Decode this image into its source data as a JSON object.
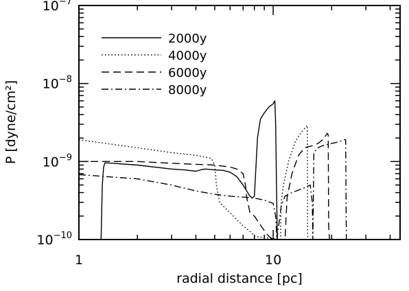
{
  "chart_data": {
    "type": "line",
    "xlabel": "radial distance [pc]",
    "ylabel": "P [dyne/cm²]",
    "x_scale": "log",
    "y_scale": "log",
    "xlim": [
      1,
      45
    ],
    "ylim": [
      1e-10,
      1e-07
    ],
    "x_ticks": [
      {
        "value": 1,
        "label": "1"
      },
      {
        "value": 10,
        "label": "10"
      }
    ],
    "y_ticks": [
      {
        "value": 1e-10,
        "base": "10",
        "exp": "−10"
      },
      {
        "value": 1e-09,
        "base": "10",
        "exp": "−9"
      },
      {
        "value": 1e-08,
        "base": "10",
        "exp": "−8"
      },
      {
        "value": 1e-07,
        "base": "10",
        "exp": "−7"
      }
    ],
    "grid": false,
    "legend_position": "top-left",
    "series": [
      {
        "name": "2000y",
        "dash": "solid",
        "x": [
          1.3,
          1.32,
          1.34,
          1.36,
          1.5,
          2,
          3,
          3.5,
          4,
          4.3,
          4.5,
          5,
          5.5,
          6,
          6.5,
          7,
          7.3,
          7.6,
          7.8,
          8.0,
          8.3,
          8.6,
          9.0,
          9.5,
          10.0,
          10.2,
          10.3,
          10.4,
          10.5
        ],
        "y": [
          1e-10,
          5e-10,
          8.5e-10,
          9.6e-10,
          9.5e-10,
          9e-10,
          8e-10,
          7.8e-10,
          7.5e-10,
          7.9e-10,
          8e-10,
          7.8e-10,
          7.7e-10,
          7.3e-10,
          6.4e-10,
          5e-10,
          4.2e-10,
          3.6e-10,
          3.4e-10,
          3.6e-10,
          2e-09,
          3.5e-09,
          4.2e-09,
          5e-09,
          5.5e-09,
          6e-09,
          3e-09,
          5e-10,
          1e-10
        ]
      },
      {
        "name": "4000y",
        "dash": "dotted",
        "x": [
          1,
          2,
          3,
          4,
          4.8,
          5.0,
          5.1,
          5.3,
          5.6,
          6,
          6.5,
          7,
          7.5,
          7.8,
          8.0,
          10.9,
          11.0,
          11.3,
          12,
          13,
          14,
          14.8,
          15.0,
          15.05
        ],
        "y": [
          1.9e-09,
          1.5e-09,
          1.3e-09,
          1.2e-09,
          1.1e-09,
          9e-10,
          5e-10,
          3e-10,
          2.6e-10,
          2.2e-10,
          1.8e-10,
          1.5e-10,
          1.3e-10,
          1.2e-10,
          1.1e-10,
          1e-10,
          3e-10,
          5e-10,
          1e-09,
          1.8e-09,
          2.4e-09,
          2.8e-09,
          2.9e-09,
          1e-10
        ]
      },
      {
        "name": "6000y",
        "dash": "dashed",
        "x": [
          1,
          2,
          3,
          4,
          5,
          6,
          6.5,
          7.0,
          7.2,
          7.3,
          7.4,
          7.6,
          8.0,
          8.5,
          9.0,
          9.5,
          10.0,
          11.5,
          11.8,
          12.5,
          13.5,
          14.5,
          16,
          17,
          18,
          19,
          19.2,
          19.3,
          19.5,
          19.6
        ],
        "y": [
          1e-09,
          1e-09,
          9.5e-10,
          9.2e-10,
          9e-10,
          8.5e-10,
          8e-10,
          7e-10,
          5e-10,
          3.5e-10,
          3e-10,
          2.2e-10,
          2e-10,
          1.6e-10,
          1.3e-10,
          1.1e-10,
          1e-10,
          1e-10,
          3.5e-10,
          7e-10,
          1.2e-09,
          1.5e-09,
          1.6e-09,
          1.7e-09,
          1.9e-09,
          2.3e-09,
          2.2e-09,
          1.5e-10,
          1e-10,
          1e-10
        ]
      },
      {
        "name": "8000y",
        "dash": "dashdot",
        "x": [
          1,
          2,
          3,
          4,
          5,
          6,
          7,
          8,
          9,
          10,
          10.3,
          10.45,
          11.0,
          11.5,
          12.5,
          13.5,
          14.5,
          15.5,
          15.9,
          16,
          16.2,
          17,
          18,
          20,
          22,
          23,
          23.6,
          23.8
        ],
        "y": [
          6.8e-10,
          6e-10,
          5e-10,
          4.2e-10,
          3.8e-10,
          3.6e-10,
          3.5e-10,
          3.4e-10,
          3.2e-10,
          2.9e-10,
          2e-10,
          1e-10,
          2.7e-10,
          3.6e-10,
          4e-10,
          4.3e-10,
          4.6e-10,
          5e-10,
          3e-10,
          1e-10,
          1.3e-09,
          1.5e-09,
          1.6e-09,
          1.7e-09,
          1.8e-09,
          1.9e-09,
          1.9e-09,
          1e-10
        ]
      }
    ]
  },
  "legend": {
    "entries": [
      "2000y",
      "4000y",
      "6000y",
      "8000y"
    ]
  }
}
